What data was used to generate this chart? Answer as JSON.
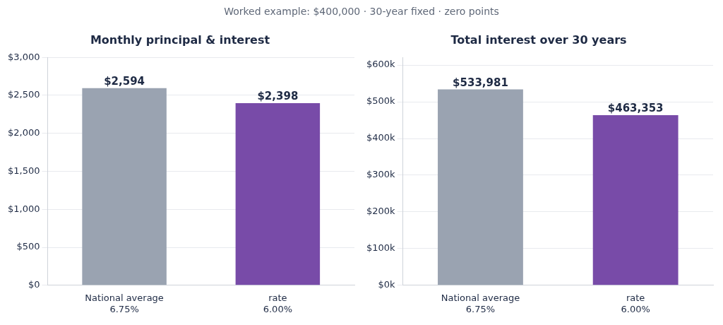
{
  "chart_data": [
    {
      "type": "bar",
      "subtitle": "Worked example: $400,000 · 30-year fixed · zero points",
      "title": "Monthly principal & interest",
      "categories": [
        "National average\n6.75%",
        "rate\n6.00%"
      ],
      "values": [
        2594,
        2398
      ],
      "colors": [
        "#9aa3b1",
        "#784ba8"
      ],
      "value_labels": [
        "$2,594",
        "$2,398"
      ],
      "ylim": [
        0,
        3000
      ],
      "yticks": [
        {
          "value": 0,
          "label": "$0"
        },
        {
          "value": 500,
          "label": "$500"
        },
        {
          "value": 1000,
          "label": "$1,000"
        },
        {
          "value": 1500,
          "label": "$1,500"
        },
        {
          "value": 2000,
          "label": "$2,000"
        },
        {
          "value": 2500,
          "label": "$2,500"
        },
        {
          "value": 3000,
          "label": "$3,000"
        }
      ],
      "grid": "y",
      "legend": false
    },
    {
      "type": "bar",
      "title": "Total interest over 30 years",
      "categories": [
        "National average\n6.75%",
        "rate\n6.00%"
      ],
      "values": [
        533981,
        463353
      ],
      "colors": [
        "#9aa3b1",
        "#784ba8"
      ],
      "value_labels": [
        "$533,981",
        "$463,353"
      ],
      "ylim": [
        0,
        621000
      ],
      "yticks": [
        {
          "value": 0,
          "label": "$0k"
        },
        {
          "value": 100000,
          "label": "$100k"
        },
        {
          "value": 200000,
          "label": "$200k"
        },
        {
          "value": 300000,
          "label": "$300k"
        },
        {
          "value": 400000,
          "label": "$400k"
        },
        {
          "value": 500000,
          "label": "$500k"
        },
        {
          "value": 600000,
          "label": "$600k"
        }
      ],
      "grid": "y",
      "legend": false
    }
  ]
}
